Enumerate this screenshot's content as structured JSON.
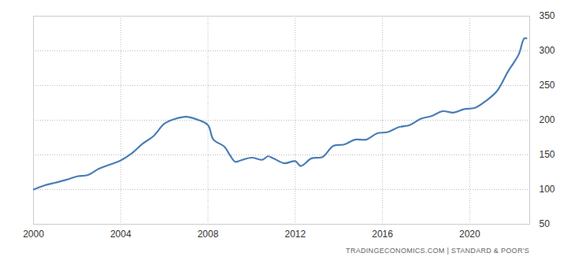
{
  "chart_data": {
    "type": "line",
    "caption": "TRADINGECONOMICS.COM | STANDARD & POOR'S",
    "x": [
      2000,
      2000.5,
      2001,
      2001.5,
      2002,
      2002.5,
      2003,
      2003.5,
      2004,
      2004.5,
      2005,
      2005.5,
      2006,
      2006.5,
      2007,
      2007.5,
      2008,
      2008.25,
      2008.75,
      2009,
      2009.25,
      2009.5,
      2010,
      2010.5,
      2010.75,
      2011,
      2011.5,
      2012,
      2012.25,
      2012.75,
      2013.25,
      2013.75,
      2014.25,
      2014.75,
      2015.25,
      2015.75,
      2016.25,
      2016.75,
      2017.25,
      2017.75,
      2018.25,
      2018.75,
      2019.25,
      2019.75,
      2020.25,
      2020.75,
      2021.25,
      2021.75,
      2022,
      2022.25,
      2022.5,
      2022.6
    ],
    "values": [
      100,
      106,
      110,
      114,
      119,
      121,
      130,
      136,
      142,
      152,
      166,
      177,
      195,
      202,
      205,
      201,
      193,
      172,
      162,
      150,
      140,
      142,
      146,
      143,
      148,
      145,
      138,
      141,
      134,
      145,
      147,
      163,
      165,
      172,
      172,
      181,
      183,
      190,
      193,
      202,
      206,
      213,
      211,
      216,
      218,
      228,
      242,
      270,
      282,
      295,
      318,
      318
    ],
    "color": "#4a7eb5",
    "xlim": [
      2000,
      2022.75
    ],
    "xticks": [
      2000,
      2004,
      2008,
      2012,
      2016,
      2020
    ],
    "ylim": [
      50,
      350
    ],
    "yticks": [
      50,
      100,
      150,
      200,
      250,
      300,
      350
    ],
    "grid": true
  }
}
